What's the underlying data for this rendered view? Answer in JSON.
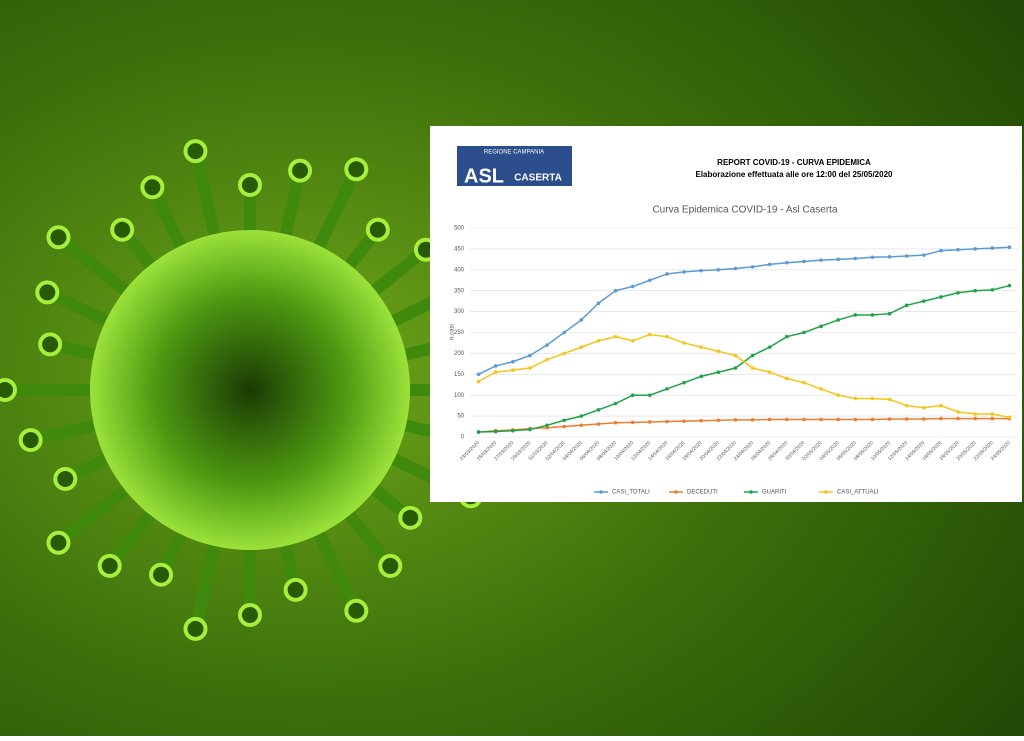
{
  "logo": {
    "region": "REGIONE CAMPANIA",
    "name": "ASL",
    "city": "CASERTA"
  },
  "report": {
    "title": "REPORT COVID-19 - CURVA EPIDEMICA",
    "subtitle": "Elaborazione effettuata alle ore 12:00 del 25/05/2020"
  },
  "chart_data": {
    "type": "line",
    "title": "Curva Epidemica COVID-19 - Asl Caserta",
    "y_label": "n.casi",
    "categories": [
      "23/03/2020",
      "25/03/2020",
      "27/03/2020",
      "29/03/2020",
      "31/03/2020",
      "02/04/2020",
      "04/04/2020",
      "06/04/2020",
      "08/04/2020",
      "10/04/2020",
      "12/04/2020",
      "14/04/2020",
      "16/04/2020",
      "18/04/2020",
      "20/04/2020",
      "22/04/2020",
      "24/04/2020",
      "26/04/2020",
      "28/04/2020",
      "30/04/2020",
      "02/05/2020",
      "04/05/2020",
      "06/05/2020",
      "08/05/2020",
      "10/05/2020",
      "12/05/2020",
      "14/05/2020",
      "16/05/2020",
      "18/05/2020",
      "20/05/2020",
      "22/05/2020",
      "24/05/2020"
    ],
    "series": [
      {
        "name": "CASI_TOTALI",
        "color": "#5b9bd5",
        "values": [
          150,
          170,
          180,
          195,
          220,
          250,
          280,
          320,
          350,
          360,
          375,
          390,
          395,
          398,
          400,
          403,
          407,
          413,
          417,
          420,
          423,
          425,
          427,
          430,
          431,
          433,
          435,
          446,
          448,
          450,
          452,
          454
        ]
      },
      {
        "name": "DECEDUTI",
        "color": "#ed7d31",
        "values": [
          12,
          15,
          17,
          20,
          22,
          25,
          28,
          31,
          34,
          35,
          36,
          37,
          38,
          39,
          40,
          41,
          41,
          42,
          42,
          42,
          42,
          42,
          42,
          42,
          43,
          43,
          43,
          44,
          44,
          44,
          44,
          44
        ]
      },
      {
        "name": "GUARITI",
        "color": "#1fa34a",
        "values": [
          12,
          13,
          15,
          18,
          28,
          40,
          50,
          65,
          80,
          100,
          100,
          115,
          130,
          145,
          155,
          165,
          195,
          215,
          240,
          250,
          265,
          280,
          292,
          292,
          295,
          315,
          325,
          335,
          345,
          350,
          352,
          362
        ]
      },
      {
        "name": "CASI_ATTUALI",
        "color": "#f5c518",
        "values": [
          133,
          155,
          160,
          165,
          185,
          200,
          215,
          230,
          240,
          230,
          245,
          240,
          225,
          215,
          205,
          195,
          165,
          155,
          140,
          130,
          115,
          100,
          92,
          92,
          90,
          75,
          70,
          75,
          60,
          55,
          55,
          47
        ]
      }
    ],
    "ylim": [
      0,
      500
    ],
    "yticks": [
      0,
      50,
      100,
      150,
      200,
      250,
      300,
      350,
      400,
      450,
      500
    ],
    "grid": true,
    "legend": "bottom"
  }
}
